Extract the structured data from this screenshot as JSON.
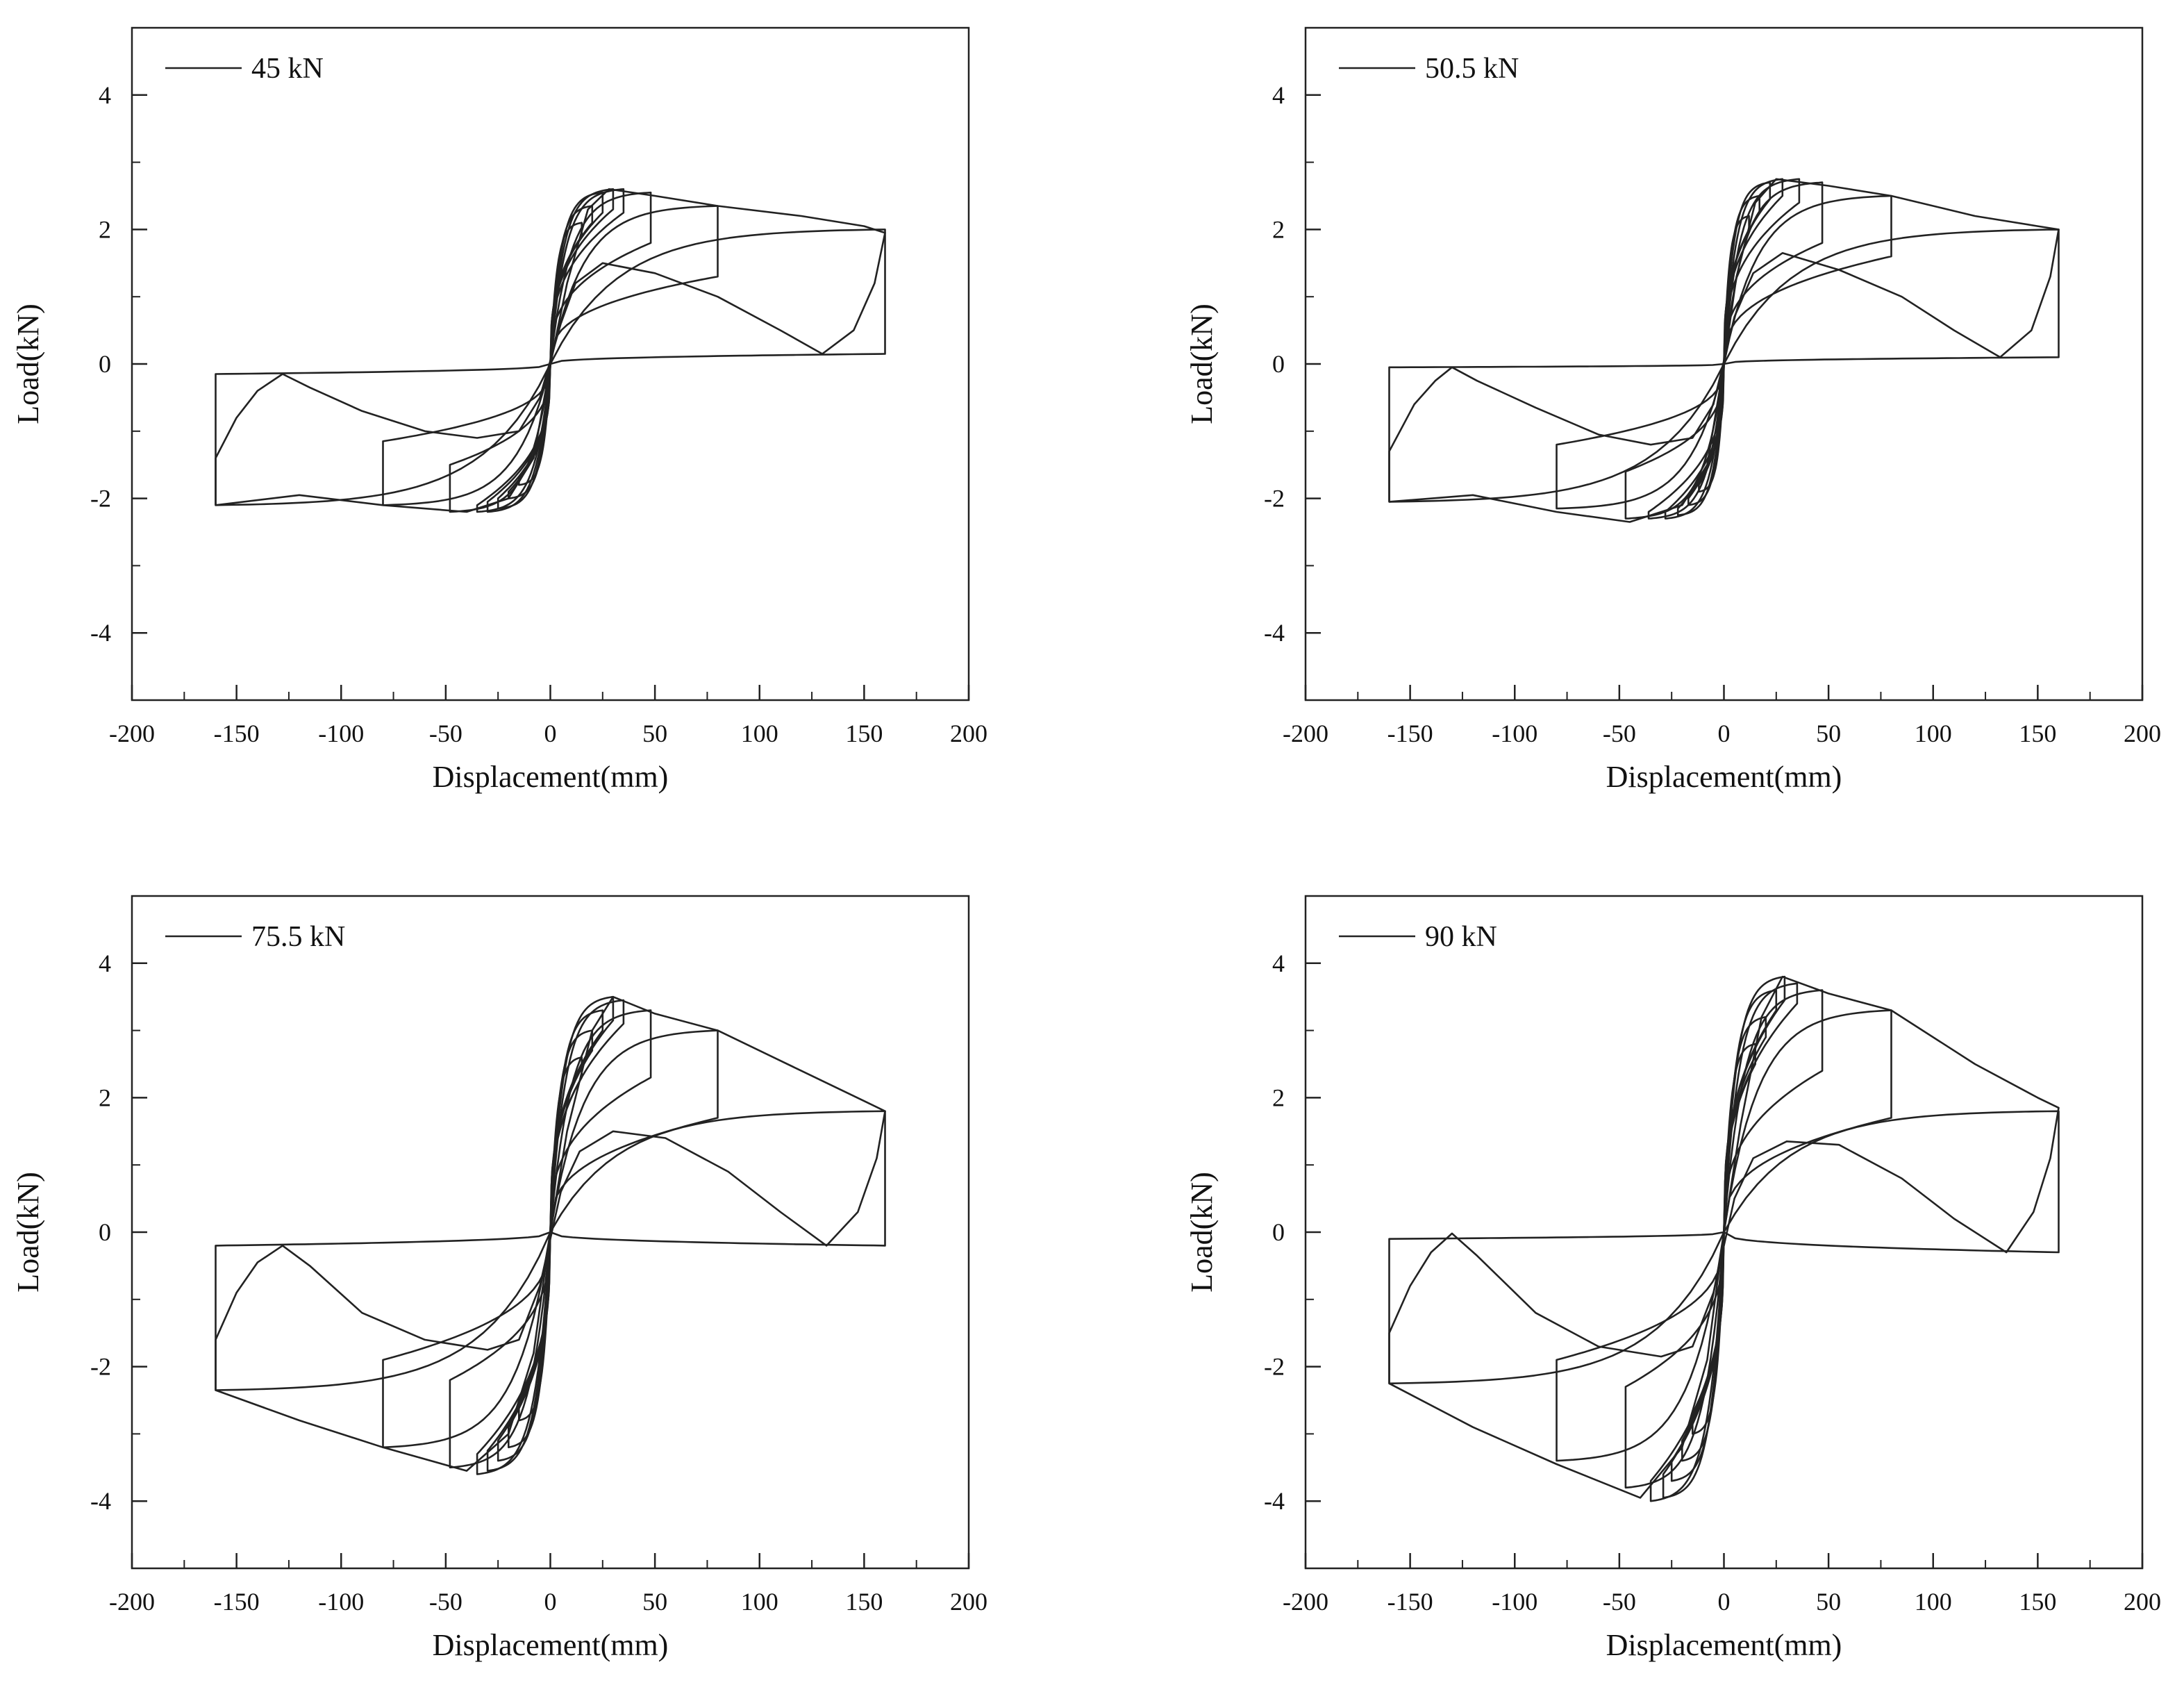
{
  "figure": {
    "background": "#ffffff",
    "line_color": "#222222"
  },
  "chart_data": [
    {
      "type": "line",
      "title": "",
      "xlabel": "Displacement(mm)",
      "ylabel": "Load(kN)",
      "xlim": [
        -200,
        200
      ],
      "ylim": [
        -5,
        5
      ],
      "xticks": [
        -200,
        -150,
        -100,
        -50,
        0,
        50,
        100,
        150,
        200
      ],
      "yticks": [
        -4,
        -2,
        0,
        2,
        4
      ],
      "grid": false,
      "legend": "top-left",
      "series": [
        {
          "name": "45 kN",
          "loops": [
            {
              "amp": 15,
              "Pp": 2.1,
              "Pn": -1.8,
              "Up": 1.9,
              "Un": -1.7
            },
            {
              "amp": 20,
              "Pp": 2.35,
              "Pn": -2.0,
              "Up": 2.1,
              "Un": -1.9
            },
            {
              "amp": 25,
              "Pp": 2.55,
              "Pn": -2.15,
              "Up": 2.25,
              "Un": -2.0
            },
            {
              "amp": 30,
              "Pp": 2.6,
              "Pn": -2.2,
              "Up": 2.3,
              "Un": -2.05
            },
            {
              "amp": 35,
              "Pp": 2.6,
              "Pn": -2.2,
              "Up": 2.25,
              "Un": -2.1
            },
            {
              "amp": 48,
              "Pp": 2.55,
              "Pn": -2.2,
              "Up": 1.8,
              "Un": -1.5
            },
            {
              "amp": 80,
              "Pp": 2.35,
              "Pn": -2.1,
              "Up": 1.3,
              "Un": -1.15
            },
            {
              "amp": 160,
              "Pp": 2.0,
              "Pn": -2.1,
              "Up": 0.15,
              "Un": -0.15
            }
          ],
          "points": [
            [
              -160,
              -2.1
            ],
            [
              -160,
              -1.4
            ],
            [
              -150,
              -0.8
            ],
            [
              -140,
              -0.4
            ],
            [
              -128,
              -0.15
            ],
            [
              -115,
              -0.35
            ],
            [
              -90,
              -0.7
            ],
            [
              -60,
              -1.0
            ],
            [
              -35,
              -1.1
            ],
            [
              -15,
              -1.0
            ],
            [
              -5,
              -0.5
            ],
            [
              5,
              0.6
            ],
            [
              12,
              1.2
            ],
            [
              25,
              1.5
            ],
            [
              50,
              1.35
            ],
            [
              80,
              1.0
            ],
            [
              110,
              0.5
            ],
            [
              130,
              0.15
            ],
            [
              145,
              0.5
            ],
            [
              155,
              1.2
            ],
            [
              160,
              1.95
            ],
            [
              150,
              2.05
            ],
            [
              120,
              2.2
            ],
            [
              80,
              2.35
            ],
            [
              50,
              2.5
            ],
            [
              28,
              2.6
            ],
            [
              18,
              2.3
            ],
            [
              8,
              1.2
            ],
            [
              0,
              0
            ],
            [
              -8,
              -1.4
            ],
            [
              -20,
              -2.0
            ],
            [
              -40,
              -2.2
            ],
            [
              -80,
              -2.1
            ],
            [
              -120,
              -1.95
            ],
            [
              -160,
              -2.1
            ]
          ]
        }
      ]
    },
    {
      "type": "line",
      "title": "",
      "xlabel": "Displacement(mm)",
      "ylabel": "Load(kN)",
      "xlim": [
        -200,
        200
      ],
      "ylim": [
        -5,
        5
      ],
      "xticks": [
        -200,
        -150,
        -100,
        -50,
        0,
        50,
        100,
        150,
        200
      ],
      "yticks": [
        -4,
        -2,
        0,
        2,
        4
      ],
      "grid": false,
      "legend": "top-left",
      "series": [
        {
          "name": "50.5 kN",
          "loops": [
            {
              "amp": 12,
              "Pp": 2.2,
              "Pn": -1.9,
              "Up": 2.0,
              "Un": -1.8
            },
            {
              "amp": 17,
              "Pp": 2.5,
              "Pn": -2.1,
              "Up": 2.25,
              "Un": -2.0
            },
            {
              "amp": 22,
              "Pp": 2.7,
              "Pn": -2.25,
              "Up": 2.45,
              "Un": -2.15
            },
            {
              "amp": 28,
              "Pp": 2.75,
              "Pn": -2.3,
              "Up": 2.5,
              "Un": -2.2
            },
            {
              "amp": 36,
              "Pp": 2.75,
              "Pn": -2.3,
              "Up": 2.4,
              "Un": -2.2
            },
            {
              "amp": 47,
              "Pp": 2.7,
              "Pn": -2.3,
              "Up": 1.8,
              "Un": -1.6
            },
            {
              "amp": 80,
              "Pp": 2.5,
              "Pn": -2.15,
              "Up": 1.6,
              "Un": -1.2
            },
            {
              "amp": 160,
              "Pp": 2.0,
              "Pn": -2.05,
              "Up": 0.1,
              "Un": -0.05
            }
          ],
          "points": [
            [
              -160,
              -2.05
            ],
            [
              -160,
              -1.3
            ],
            [
              -148,
              -0.6
            ],
            [
              -138,
              -0.25
            ],
            [
              -130,
              -0.05
            ],
            [
              -118,
              -0.25
            ],
            [
              -90,
              -0.65
            ],
            [
              -60,
              -1.05
            ],
            [
              -35,
              -1.2
            ],
            [
              -15,
              -1.1
            ],
            [
              -5,
              -0.6
            ],
            [
              5,
              0.7
            ],
            [
              14,
              1.35
            ],
            [
              28,
              1.65
            ],
            [
              55,
              1.4
            ],
            [
              85,
              1.0
            ],
            [
              110,
              0.5
            ],
            [
              132,
              0.1
            ],
            [
              147,
              0.5
            ],
            [
              156,
              1.3
            ],
            [
              160,
              2.0
            ],
            [
              150,
              2.05
            ],
            [
              120,
              2.2
            ],
            [
              80,
              2.5
            ],
            [
              50,
              2.65
            ],
            [
              25,
              2.75
            ],
            [
              15,
              2.4
            ],
            [
              6,
              1.3
            ],
            [
              0,
              0
            ],
            [
              -8,
              -1.5
            ],
            [
              -20,
              -2.1
            ],
            [
              -45,
              -2.35
            ],
            [
              -80,
              -2.2
            ],
            [
              -120,
              -1.95
            ],
            [
              -160,
              -2.05
            ]
          ]
        }
      ]
    },
    {
      "type": "line",
      "title": "",
      "xlabel": "Displacement(mm)",
      "ylabel": "Load(kN)",
      "xlim": [
        -200,
        200
      ],
      "ylim": [
        -5,
        5
      ],
      "xticks": [
        -200,
        -150,
        -100,
        -50,
        0,
        50,
        100,
        150,
        200
      ],
      "yticks": [
        -4,
        -2,
        0,
        2,
        4
      ],
      "grid": false,
      "legend": "top-left",
      "series": [
        {
          "name": "75.5 kN",
          "loops": [
            {
              "amp": 15,
              "Pp": 2.6,
              "Pn": -2.8,
              "Up": 2.3,
              "Un": -2.5
            },
            {
              "amp": 20,
              "Pp": 3.0,
              "Pn": -3.2,
              "Up": 2.7,
              "Un": -2.9
            },
            {
              "amp": 25,
              "Pp": 3.3,
              "Pn": -3.4,
              "Up": 3.0,
              "Un": -3.1
            },
            {
              "amp": 30,
              "Pp": 3.5,
              "Pn": -3.55,
              "Up": 3.15,
              "Un": -3.25
            },
            {
              "amp": 35,
              "Pp": 3.45,
              "Pn": -3.6,
              "Up": 3.1,
              "Un": -3.3
            },
            {
              "amp": 48,
              "Pp": 3.3,
              "Pn": -3.5,
              "Up": 2.3,
              "Un": -2.2
            },
            {
              "amp": 80,
              "Pp": 3.0,
              "Pn": -3.2,
              "Up": 1.7,
              "Un": -1.9
            },
            {
              "amp": 160,
              "Pp": 1.8,
              "Pn": -2.35,
              "Up": -0.2,
              "Un": -0.2
            }
          ],
          "points": [
            [
              -160,
              -2.35
            ],
            [
              -160,
              -1.6
            ],
            [
              -150,
              -0.9
            ],
            [
              -140,
              -0.45
            ],
            [
              -128,
              -0.2
            ],
            [
              -115,
              -0.5
            ],
            [
              -90,
              -1.2
            ],
            [
              -60,
              -1.6
            ],
            [
              -30,
              -1.75
            ],
            [
              -15,
              -1.6
            ],
            [
              -5,
              -0.8
            ],
            [
              5,
              0.6
            ],
            [
              14,
              1.2
            ],
            [
              30,
              1.5
            ],
            [
              55,
              1.4
            ],
            [
              85,
              0.9
            ],
            [
              110,
              0.3
            ],
            [
              132,
              -0.2
            ],
            [
              147,
              0.3
            ],
            [
              156,
              1.1
            ],
            [
              160,
              1.8
            ],
            [
              150,
              1.95
            ],
            [
              120,
              2.4
            ],
            [
              80,
              3.0
            ],
            [
              50,
              3.25
            ],
            [
              30,
              3.5
            ],
            [
              20,
              3.0
            ],
            [
              8,
              1.5
            ],
            [
              0,
              0
            ],
            [
              -8,
              -1.8
            ],
            [
              -20,
              -3.0
            ],
            [
              -40,
              -3.55
            ],
            [
              -80,
              -3.2
            ],
            [
              -120,
              -2.8
            ],
            [
              -160,
              -2.35
            ]
          ]
        }
      ]
    },
    {
      "type": "line",
      "title": "",
      "xlabel": "Displacement(mm)",
      "ylabel": "Load(kN)",
      "xlim": [
        -200,
        200
      ],
      "ylim": [
        -5,
        5
      ],
      "xticks": [
        -200,
        -150,
        -100,
        -50,
        0,
        50,
        100,
        150,
        200
      ],
      "yticks": [
        -4,
        -2,
        0,
        2,
        4
      ],
      "grid": false,
      "legend": "top-left",
      "series": [
        {
          "name": "90 kN",
          "loops": [
            {
              "amp": 15,
              "Pp": 2.8,
              "Pn": -3.0,
              "Up": 2.5,
              "Un": -2.7
            },
            {
              "amp": 20,
              "Pp": 3.2,
              "Pn": -3.4,
              "Up": 2.9,
              "Un": -3.1
            },
            {
              "amp": 25,
              "Pp": 3.6,
              "Pn": -3.7,
              "Up": 3.3,
              "Un": -3.4
            },
            {
              "amp": 29,
              "Pp": 3.8,
              "Pn": -3.95,
              "Up": 3.45,
              "Un": -3.6
            },
            {
              "amp": 35,
              "Pp": 3.7,
              "Pn": -4.0,
              "Up": 3.4,
              "Un": -3.7
            },
            {
              "amp": 47,
              "Pp": 3.6,
              "Pn": -3.8,
              "Up": 2.4,
              "Un": -2.3
            },
            {
              "amp": 80,
              "Pp": 3.3,
              "Pn": -3.4,
              "Up": 1.7,
              "Un": -1.9
            },
            {
              "amp": 160,
              "Pp": 1.8,
              "Pn": -2.25,
              "Up": -0.3,
              "Un": -0.1
            }
          ],
          "points": [
            [
              -160,
              -2.25
            ],
            [
              -160,
              -1.5
            ],
            [
              -150,
              -0.8
            ],
            [
              -140,
              -0.3
            ],
            [
              -130,
              -0.02
            ],
            [
              -118,
              -0.35
            ],
            [
              -90,
              -1.2
            ],
            [
              -60,
              -1.7
            ],
            [
              -30,
              -1.85
            ],
            [
              -15,
              -1.7
            ],
            [
              -5,
              -0.9
            ],
            [
              5,
              0.5
            ],
            [
              14,
              1.1
            ],
            [
              30,
              1.35
            ],
            [
              55,
              1.3
            ],
            [
              85,
              0.8
            ],
            [
              110,
              0.2
            ],
            [
              135,
              -0.3
            ],
            [
              148,
              0.3
            ],
            [
              156,
              1.1
            ],
            [
              160,
              1.85
            ],
            [
              150,
              2.0
            ],
            [
              120,
              2.5
            ],
            [
              80,
              3.3
            ],
            [
              50,
              3.55
            ],
            [
              28,
              3.8
            ],
            [
              18,
              3.2
            ],
            [
              8,
              1.6
            ],
            [
              0,
              0
            ],
            [
              -8,
              -1.9
            ],
            [
              -20,
              -3.2
            ],
            [
              -40,
              -3.95
            ],
            [
              -80,
              -3.45
            ],
            [
              -120,
              -2.9
            ],
            [
              -160,
              -2.25
            ]
          ]
        }
      ]
    }
  ]
}
